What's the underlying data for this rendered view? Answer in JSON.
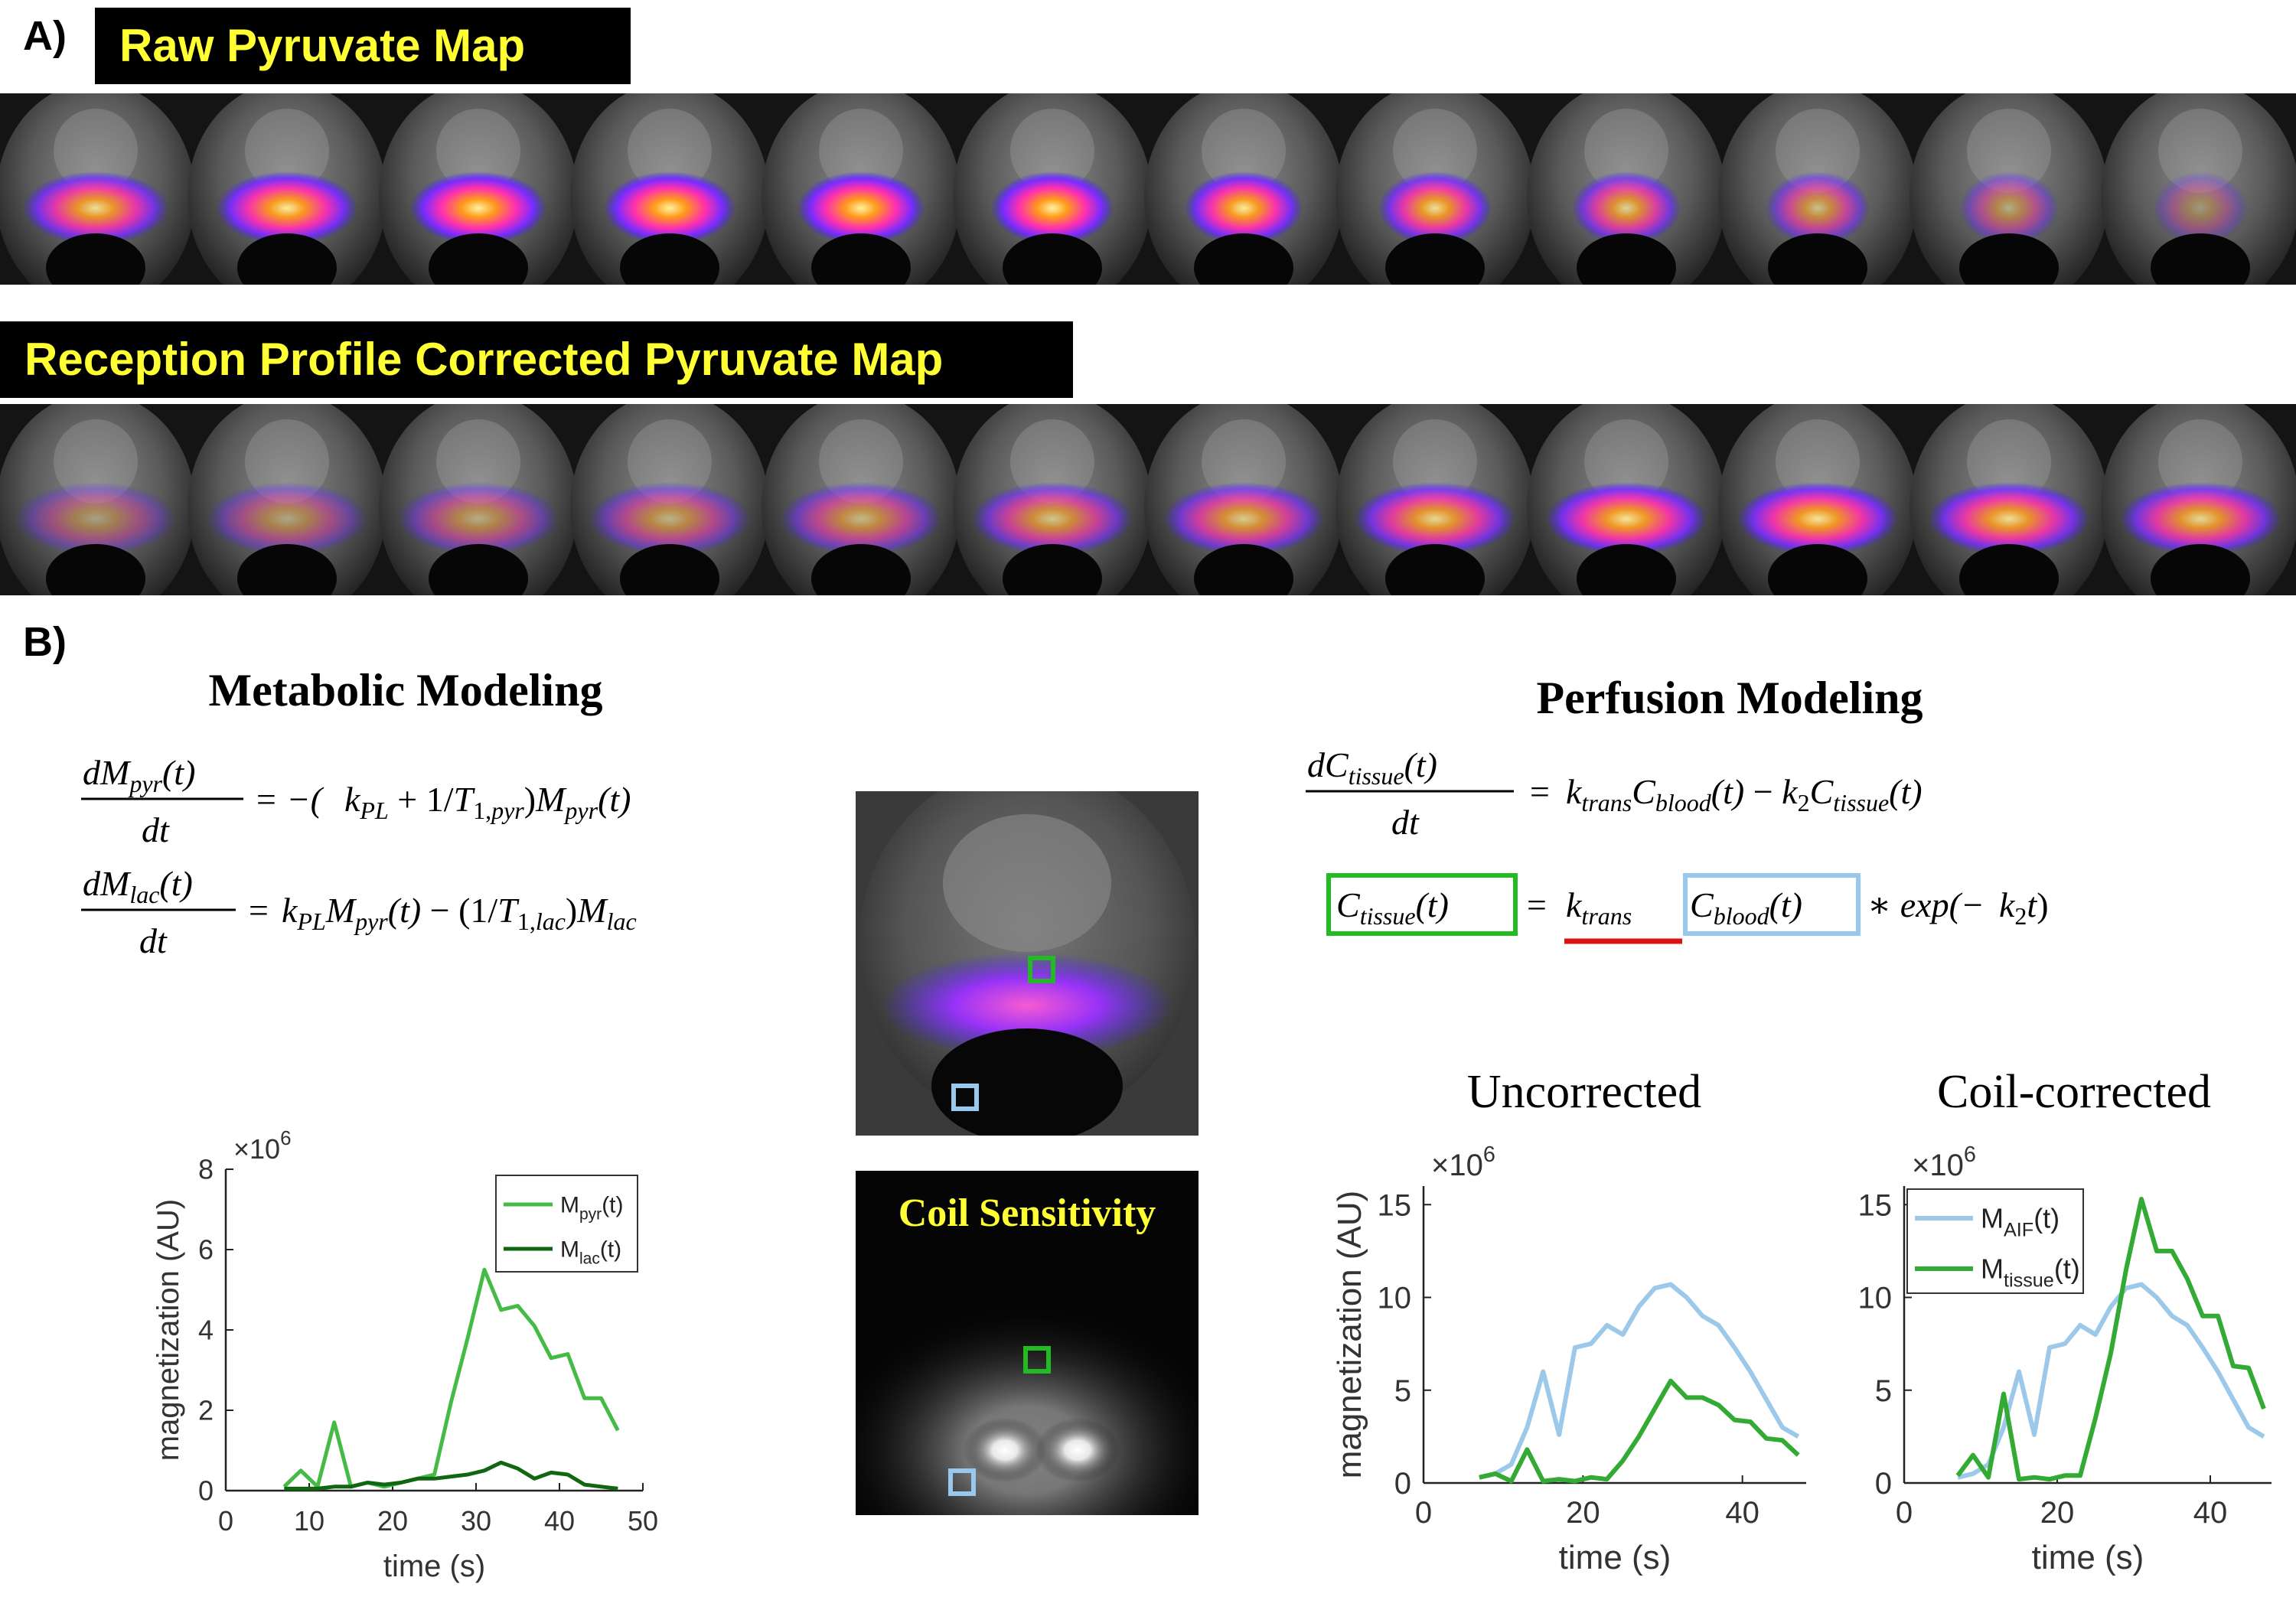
{
  "panel_a": {
    "label": "A)",
    "raw_title": "Raw Pyruvate Map",
    "corrected_title": "Reception Profile Corrected Pyruvate Map",
    "raw_slice_intensity": [
      0.85,
      0.95,
      1.0,
      1.0,
      1.0,
      1.0,
      0.95,
      0.85,
      0.75,
      0.6,
      0.45,
      0.3
    ],
    "corrected_slice_intensity": [
      0.35,
      0.4,
      0.45,
      0.5,
      0.55,
      0.65,
      0.7,
      0.8,
      0.9,
      0.9,
      0.85,
      0.8
    ]
  },
  "panel_b": {
    "label": "B)",
    "metabolic_title": "Metabolic Modeling",
    "perfusion_title": "Perfusion Modeling",
    "coil_title": "Coil Sensitivity",
    "uncorrected_title": "Uncorrected",
    "coilcorrected_title": "Coil-corrected"
  },
  "colors": {
    "green_box": "#22bb22",
    "blue_box": "#99c8ee",
    "red_underline": "#dd1111",
    "title_yellow": "#ffff33",
    "pyr_line": "#44bb44",
    "lac_line": "#116611",
    "aif_line": "#9cc8ea",
    "tissue_line": "#33aa33"
  },
  "chart_data": [
    {
      "type": "line",
      "title": "",
      "xlabel": "time (s)",
      "ylabel": "magnetization (AU)",
      "exponent_label": "×10",
      "exponent_power": "6",
      "xlim": [
        0,
        50
      ],
      "ylim": [
        0,
        8
      ],
      "xticks": [
        "0",
        "10",
        "20",
        "30",
        "40",
        "50"
      ],
      "yticks": [
        "0",
        "2",
        "4",
        "6",
        "8"
      ],
      "legend": "top-right",
      "series": [
        {
          "name": "M",
          "sub": "pyr",
          "suffix": "(t)",
          "color": "#44bb44",
          "x": [
            7,
            9,
            11,
            13,
            15,
            17,
            19,
            21,
            23,
            25,
            27,
            29,
            31,
            33,
            35,
            37,
            39,
            41,
            43,
            45,
            47
          ],
          "y": [
            0.1,
            0.5,
            0.1,
            1.7,
            0.1,
            0.2,
            0.1,
            0.2,
            0.3,
            0.4,
            2.2,
            3.8,
            5.5,
            4.5,
            4.6,
            4.1,
            3.3,
            3.4,
            2.3,
            2.3,
            1.5
          ]
        },
        {
          "name": "M",
          "sub": "lac",
          "suffix": "(t)",
          "color": "#116611",
          "x": [
            7,
            9,
            11,
            13,
            15,
            17,
            19,
            21,
            23,
            25,
            27,
            29,
            31,
            33,
            35,
            37,
            39,
            41,
            43,
            45,
            47
          ],
          "y": [
            0.05,
            0.05,
            0.05,
            0.1,
            0.1,
            0.2,
            0.15,
            0.2,
            0.3,
            0.3,
            0.35,
            0.4,
            0.5,
            0.7,
            0.55,
            0.3,
            0.45,
            0.4,
            0.15,
            0.1,
            0.05
          ]
        }
      ]
    },
    {
      "type": "line",
      "title": "Uncorrected",
      "xlabel": "time (s)",
      "ylabel": "magnetization (AU)",
      "exponent_label": "×10",
      "exponent_power": "6",
      "xlim": [
        0,
        48
      ],
      "ylim": [
        0,
        16
      ],
      "xticks": [
        "0",
        "20",
        "40"
      ],
      "yticks": [
        "0",
        "5",
        "10",
        "15"
      ],
      "series": [
        {
          "name": "M",
          "sub": "AIF",
          "suffix": "(t)",
          "color": "#9cc8ea",
          "x": [
            7,
            9,
            11,
            13,
            15,
            17,
            19,
            21,
            23,
            25,
            27,
            29,
            31,
            33,
            35,
            37,
            39,
            41,
            43,
            45,
            47
          ],
          "y": [
            0.3,
            0.5,
            1.0,
            3.0,
            6.0,
            2.6,
            7.3,
            7.5,
            8.5,
            8.0,
            9.5,
            10.5,
            10.7,
            10.0,
            9.0,
            8.5,
            7.3,
            6.0,
            4.5,
            3.0,
            2.5
          ]
        },
        {
          "name": "M",
          "sub": "tissue",
          "suffix": "(t)",
          "color": "#33aa33",
          "x": [
            7,
            9,
            11,
            13,
            15,
            17,
            19,
            21,
            23,
            25,
            27,
            29,
            31,
            33,
            35,
            37,
            39,
            41,
            43,
            45,
            47
          ],
          "y": [
            0.3,
            0.5,
            0.1,
            1.8,
            0.1,
            0.2,
            0.1,
            0.3,
            0.2,
            1.2,
            2.5,
            4.0,
            5.5,
            4.6,
            4.6,
            4.2,
            3.4,
            3.3,
            2.4,
            2.3,
            1.5
          ]
        }
      ]
    },
    {
      "type": "line",
      "title": "Coil-corrected",
      "xlabel": "time (s)",
      "ylabel": "",
      "exponent_label": "×10",
      "exponent_power": "6",
      "xlim": [
        0,
        48
      ],
      "ylim": [
        0,
        16
      ],
      "xticks": [
        "0",
        "20",
        "40"
      ],
      "yticks": [
        "0",
        "5",
        "10",
        "15"
      ],
      "legend": "top-left",
      "series": [
        {
          "name": "M",
          "sub": "AIF",
          "suffix": "(t)",
          "color": "#9cc8ea",
          "x": [
            7,
            9,
            11,
            13,
            15,
            17,
            19,
            21,
            23,
            25,
            27,
            29,
            31,
            33,
            35,
            37,
            39,
            41,
            43,
            45,
            47
          ],
          "y": [
            0.3,
            0.5,
            1.0,
            3.0,
            6.0,
            2.6,
            7.3,
            7.5,
            8.5,
            8.0,
            9.5,
            10.5,
            10.7,
            10.0,
            9.0,
            8.5,
            7.3,
            6.0,
            4.5,
            3.0,
            2.5
          ]
        },
        {
          "name": "M",
          "sub": "tissue",
          "suffix": "(t)",
          "color": "#33aa33",
          "x": [
            7,
            9,
            11,
            13,
            15,
            17,
            19,
            21,
            23,
            25,
            27,
            29,
            31,
            33,
            35,
            37,
            39,
            41,
            43,
            45,
            47
          ],
          "y": [
            0.4,
            1.5,
            0.3,
            4.8,
            0.2,
            0.3,
            0.2,
            0.4,
            0.4,
            3.5,
            7.0,
            11.5,
            15.3,
            12.5,
            12.5,
            11.0,
            9.0,
            9.0,
            6.3,
            6.2,
            4.0
          ]
        }
      ]
    }
  ]
}
